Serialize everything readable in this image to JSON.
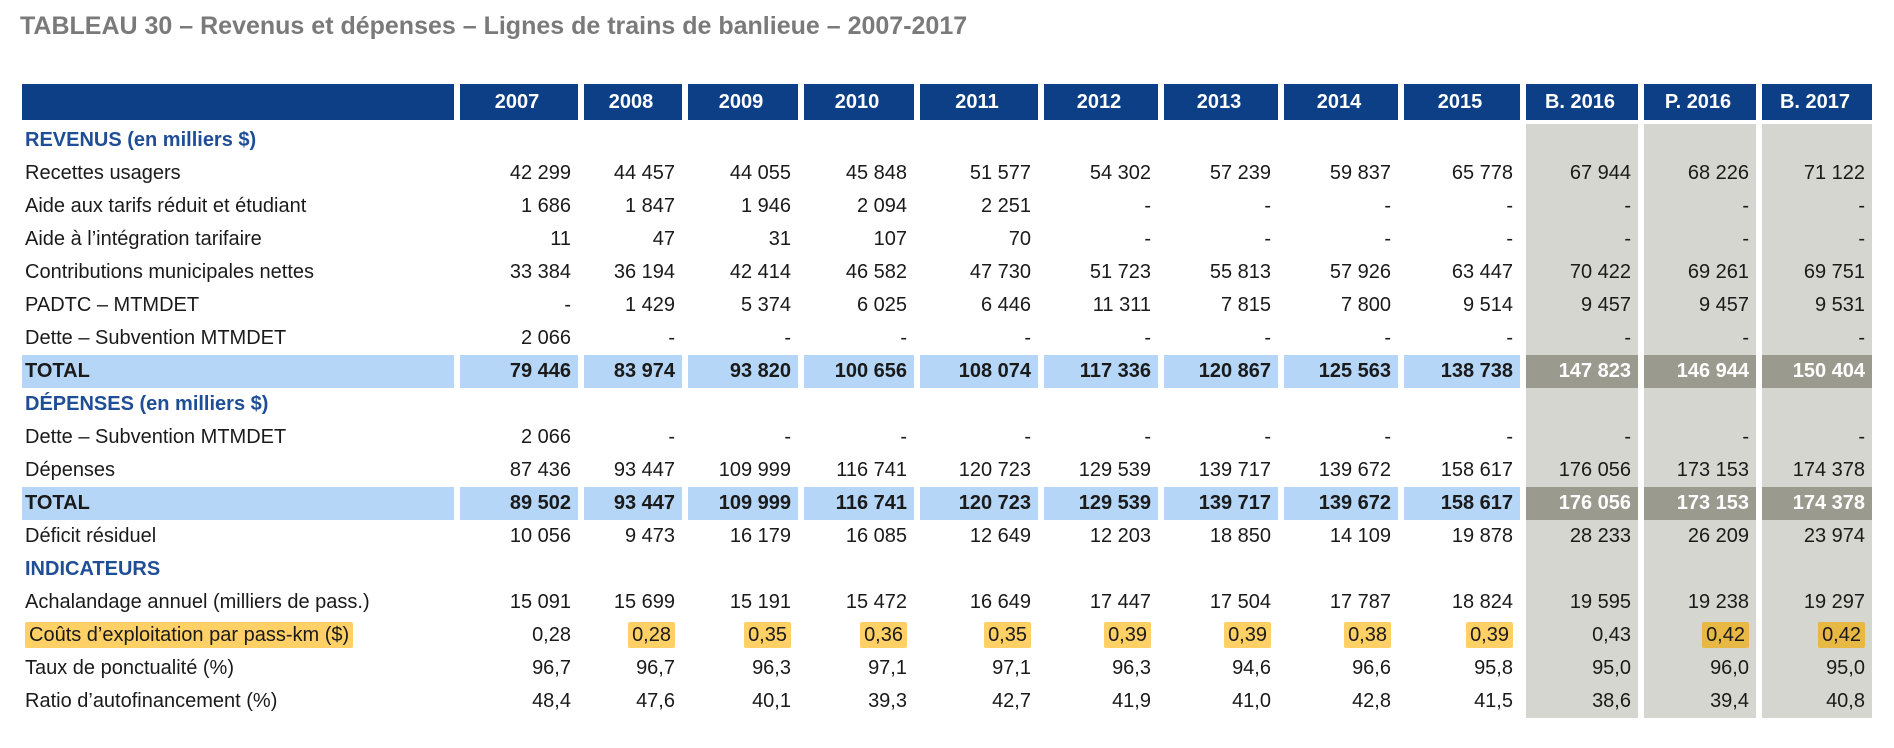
{
  "title": "TABLEAU 30 – Revenus et dépenses – Lignes de trains de banlieue – 2007-2017",
  "columns": [
    "2007",
    "2008",
    "2009",
    "2010",
    "2011",
    "2012",
    "2013",
    "2014",
    "2015",
    "B. 2016",
    "P. 2016",
    "B. 2017"
  ],
  "rows": [
    {
      "type": "section",
      "label": "REVENUS (en milliers $)",
      "values": [
        "",
        "",
        "",
        "",
        "",
        "",
        "",
        "",
        "",
        "",
        "",
        ""
      ]
    },
    {
      "type": "data",
      "label": "Recettes usagers",
      "values": [
        "42 299",
        "44 457",
        "44 055",
        "45 848",
        "51 577",
        "54 302",
        "57 239",
        "59 837",
        "65 778",
        "67 944",
        "68 226",
        "71 122"
      ]
    },
    {
      "type": "data",
      "label": "Aide aux tarifs réduit et étudiant",
      "values": [
        "1 686",
        "1 847",
        "1 946",
        "2 094",
        "2 251",
        "-",
        "-",
        "-",
        "-",
        "-",
        "-",
        "-"
      ]
    },
    {
      "type": "data",
      "label": "Aide à l’intégration tarifaire",
      "values": [
        "11",
        "47",
        "31",
        "107",
        "70",
        "-",
        "-",
        "-",
        "-",
        "-",
        "-",
        "-"
      ]
    },
    {
      "type": "data",
      "label": "Contributions municipales nettes",
      "values": [
        "33 384",
        "36 194",
        "42 414",
        "46 582",
        "47 730",
        "51 723",
        "55 813",
        "57 926",
        "63 447",
        "70 422",
        "69 261",
        "69 751"
      ]
    },
    {
      "type": "data",
      "label": "PADTC – MTMDET",
      "values": [
        "-",
        "1 429",
        "5 374",
        "6 025",
        "6 446",
        "11 311",
        "7 815",
        "7 800",
        "9 514",
        "9 457",
        "9 457",
        "9 531"
      ]
    },
    {
      "type": "data",
      "label": "Dette – Subvention MTMDET",
      "values": [
        "2 066",
        "-",
        "-",
        "-",
        "-",
        "-",
        "-",
        "-",
        "-",
        "-",
        "-",
        "-"
      ]
    },
    {
      "type": "total",
      "label": "TOTAL",
      "values": [
        "79 446",
        "83 974",
        "93 820",
        "100 656",
        "108 074",
        "117 336",
        "120 867",
        "125 563",
        "138 738",
        "147 823",
        "146 944",
        "150 404"
      ]
    },
    {
      "type": "section",
      "label": "DÉPENSES (en milliers $)",
      "values": [
        "",
        "",
        "",
        "",
        "",
        "",
        "",
        "",
        "",
        "",
        "",
        ""
      ]
    },
    {
      "type": "data",
      "label": "Dette – Subvention MTMDET",
      "values": [
        "2 066",
        "-",
        "-",
        "-",
        "-",
        "-",
        "-",
        "-",
        "-",
        "-",
        "-",
        "-"
      ]
    },
    {
      "type": "data",
      "label": "Dépenses",
      "values": [
        "87 436",
        "93 447",
        "109 999",
        "116 741",
        "120 723",
        "129 539",
        "139 717",
        "139 672",
        "158 617",
        "176 056",
        "173 153",
        "174 378"
      ]
    },
    {
      "type": "total",
      "label": "TOTAL",
      "values": [
        "89 502",
        "93 447",
        "109 999",
        "116 741",
        "120 723",
        "129 539",
        "139 717",
        "139 672",
        "158 617",
        "176 056",
        "173 153",
        "174 378"
      ]
    },
    {
      "type": "data",
      "label": "Déficit résiduel",
      "values": [
        "10 056",
        "9 473",
        "16 179",
        "16 085",
        "12 649",
        "12 203",
        "18 850",
        "14 109",
        "19 878",
        "28 233",
        "26 209",
        "23 974"
      ]
    },
    {
      "type": "section",
      "label": "INDICATEURS",
      "values": [
        "",
        "",
        "",
        "",
        "",
        "",
        "",
        "",
        "",
        "",
        "",
        ""
      ]
    },
    {
      "type": "data",
      "label": "Achalandage annuel (milliers de pass.)",
      "values": [
        "15 091",
        "15 699",
        "15 191",
        "15 472",
        "16 649",
        "17 447",
        "17 504",
        "17 787",
        "18 824",
        "19 595",
        "19 238",
        "19 297"
      ]
    },
    {
      "type": "highlight",
      "label": "Coûts d’exploitation par pass-km ($)",
      "values": [
        "0,28",
        "0,28",
        "0,35",
        "0,36",
        "0,35",
        "0,39",
        "0,39",
        "0,38",
        "0,39",
        "0,43",
        "0,42",
        "0,42"
      ],
      "highlighted": [
        false,
        true,
        true,
        true,
        true,
        true,
        true,
        true,
        true,
        false,
        true,
        true
      ]
    },
    {
      "type": "data",
      "label": "Taux de ponctualité (%)",
      "values": [
        "96,7",
        "96,7",
        "96,3",
        "97,1",
        "97,1",
        "96,3",
        "94,6",
        "96,6",
        "95,8",
        "95,0",
        "96,0",
        "95,0"
      ]
    },
    {
      "type": "data",
      "label": "Ratio d’autofinancement (%)",
      "values": [
        "48,4",
        "47,6",
        "40,1",
        "39,3",
        "42,7",
        "41,9",
        "41,0",
        "42,8",
        "41,5",
        "38,6",
        "39,4",
        "40,8"
      ]
    }
  ],
  "colors": {
    "header_bg": "#0d3f87",
    "section_text": "#1f4e96",
    "total_bg": "#b5d6f7",
    "shade_bg": "#d6d6d0",
    "shade_total_bg": "#9a9a8e",
    "highlight": "#ffd066"
  }
}
